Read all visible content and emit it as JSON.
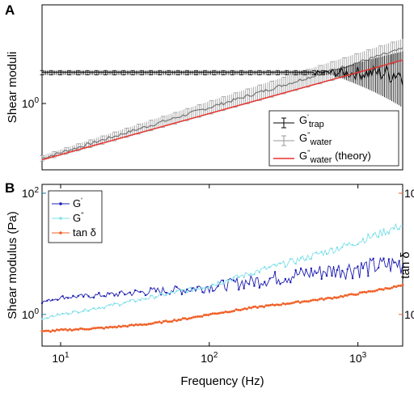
{
  "chart_data": [
    {
      "panel_label": "A",
      "type": "line",
      "x_scale": "log",
      "y_scale": "log",
      "xlim": [
        7.5,
        2000
      ],
      "ylim": [
        0.3,
        6
      ],
      "ylabel": "Shear moduli",
      "y_ticks": [
        {
          "value": 1,
          "label": "10",
          "exp": "0"
        }
      ],
      "grid": false,
      "legend_position": "bottom-right",
      "colors": {
        "trap": "#000000",
        "water": "#9a9a9a",
        "theory": "#e8322e"
      },
      "series": [
        {
          "name": "G",
          "prime": "'",
          "subscript": "trap",
          "style": "errorbar",
          "y_at_x": [
            [
              7.5,
              1.75
            ],
            [
              2000,
              1.75
            ]
          ]
        },
        {
          "name": "G",
          "prime": "''",
          "subscript": "water",
          "style": "errorbar",
          "y_at_x": [
            [
              7.5,
              0.37
            ],
            [
              2000,
              2.7
            ]
          ]
        },
        {
          "name": "G",
          "prime": "''",
          "subscript": "water",
          "suffix": " (theory)",
          "style": "line",
          "y_at_x": [
            [
              7.5,
              0.36
            ],
            [
              2000,
              2.2
            ]
          ]
        }
      ]
    },
    {
      "panel_label": "B",
      "type": "line",
      "x_scale": "log",
      "y_scale": "log",
      "xlim": [
        7.5,
        2000
      ],
      "ylim": [
        0.3,
        140
      ],
      "xlabel": "Frequency (Hz)",
      "ylabel": "Shear modulus (Pa)",
      "y2label": "tan δ",
      "x_ticks": [
        {
          "value": 10,
          "label": "10",
          "exp": "1"
        },
        {
          "value": 100,
          "label": "10",
          "exp": "2"
        },
        {
          "value": 1000,
          "label": "10",
          "exp": "3"
        }
      ],
      "y_ticks": [
        {
          "value": 1,
          "label": "10",
          "exp": "0"
        },
        {
          "value": 100,
          "label": "10",
          "exp": "2"
        }
      ],
      "y2_ticks": [
        {
          "value": 1,
          "label": "10",
          "exp": "0"
        },
        {
          "value": 100,
          "label": "10",
          "exp": "2"
        }
      ],
      "grid": false,
      "legend_position": "top-left",
      "colors": {
        "G1": "#1f1fb4",
        "G2": "#7fe0ea",
        "tan": "#f0622a",
        "left_axis": "#0a7fb0",
        "right_axis": "#f0622a"
      },
      "series": [
        {
          "name": "G",
          "prime": "'",
          "axis": "left",
          "x": [
            7.5,
            10,
            20,
            40,
            70,
            100,
            200,
            400,
            700,
            1000,
            2000
          ],
          "y": [
            1.6,
            1.9,
            2.1,
            2.4,
            2.6,
            2.9,
            3.6,
            4.6,
            5.5,
            6.0,
            7.0
          ]
        },
        {
          "name": "G",
          "prime": "''",
          "axis": "left",
          "x": [
            7.5,
            10,
            20,
            40,
            70,
            100,
            200,
            400,
            700,
            1000,
            2000
          ],
          "y": [
            0.85,
            1.0,
            1.35,
            1.9,
            2.5,
            3.0,
            5.0,
            8.0,
            12.0,
            16.0,
            30.0
          ]
        },
        {
          "name": "tan δ",
          "axis": "right",
          "x": [
            7.5,
            10,
            20,
            40,
            70,
            100,
            200,
            400,
            700,
            1000,
            2000
          ],
          "y": [
            0.52,
            0.55,
            0.6,
            0.7,
            0.85,
            1.0,
            1.3,
            1.6,
            1.9,
            2.2,
            3.0
          ]
        }
      ]
    }
  ]
}
